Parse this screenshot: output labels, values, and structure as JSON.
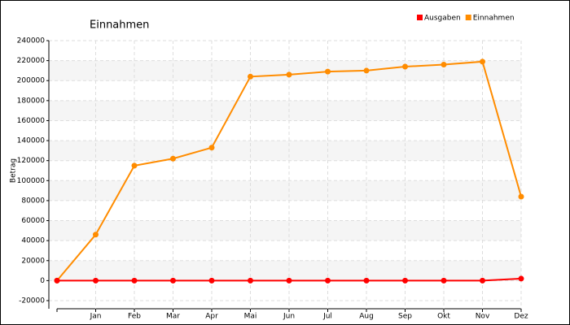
{
  "chart_data": {
    "type": "line",
    "title": "Einnahmen",
    "y_label": "Betrag",
    "categories": [
      null,
      "Jan",
      "Feb",
      "Mar",
      "Apr",
      "Mai",
      "Jun",
      "Jul",
      "Aug",
      "Sep",
      "Okt",
      "Nov",
      "Dez"
    ],
    "series": [
      {
        "name": "Ausgaben",
        "color": "#ff0000",
        "values": [
          0,
          0,
          0,
          0,
          0,
          0,
          0,
          0,
          0,
          0,
          0,
          0,
          2000
        ]
      },
      {
        "name": "Einnahmen",
        "color": "#ff8c00",
        "values": [
          0,
          46000,
          115000,
          122000,
          133000,
          204000,
          206000,
          209000,
          210000,
          214000,
          216000,
          219000,
          84000
        ]
      }
    ],
    "ylim": [
      -20000,
      240000
    ],
    "yticks": [
      -20000,
      0,
      20000,
      40000,
      60000,
      80000,
      100000,
      120000,
      140000,
      160000,
      180000,
      200000,
      220000,
      240000
    ],
    "grid": true,
    "legend": "top-right"
  }
}
